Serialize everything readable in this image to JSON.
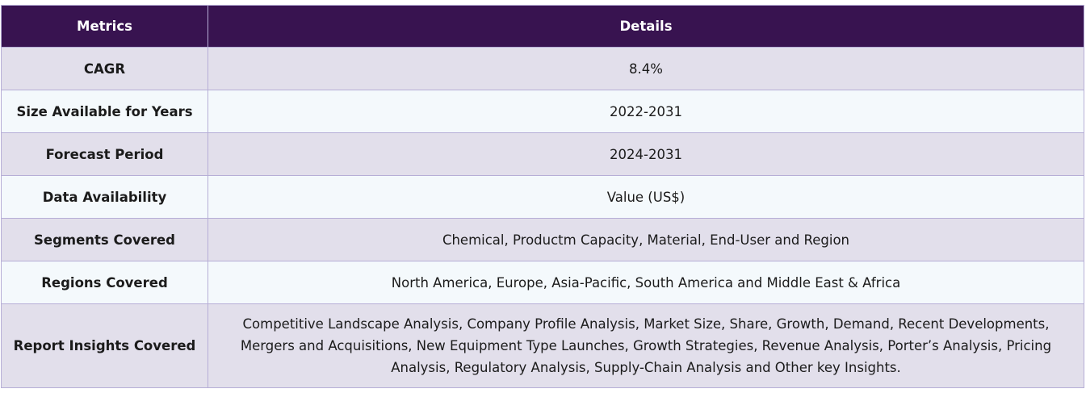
{
  "table": {
    "headers": {
      "metrics": "Metrics",
      "details": "Details"
    },
    "rows": [
      {
        "metric": "CAGR",
        "detail": "8.4%"
      },
      {
        "metric": "Size Available for Years",
        "detail": "2022-2031"
      },
      {
        "metric": "Forecast Period",
        "detail": "2024-2031"
      },
      {
        "metric": "Data Availability",
        "detail": "Value (US$)"
      },
      {
        "metric": "Segments Covered",
        "detail": "Chemical, Productm Capacity, Material, End-User and Region"
      },
      {
        "metric": "Regions Covered",
        "detail": "North America, Europe, Asia-Pacific, South America and Middle East & Africa"
      },
      {
        "metric": "Report Insights Covered",
        "detail": "Competitive Landscape Analysis, Company Profile Analysis, Market Size, Share, Growth, Demand, Recent Developments, Mergers and Acquisitions, New Equipment Type Launches, Growth Strategies, Revenue Analysis, Porter’s Analysis, Pricing Analysis, Regulatory Analysis, Supply-Chain Analysis and Other key Insights."
      }
    ]
  },
  "colors": {
    "header_bg": "#381350",
    "header_text": "#ffffff",
    "row_odd_bg": "#e2dfeb",
    "row_even_bg": "#f4f9fc",
    "border": "#b6aed6"
  }
}
